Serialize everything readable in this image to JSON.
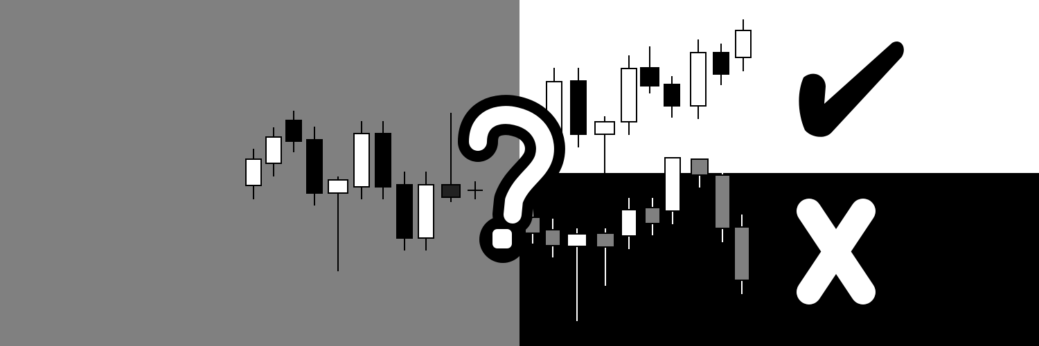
{
  "colors": {
    "left_background": "#808080",
    "right_top_background": "#ffffff",
    "right_bottom_background": "#000000",
    "bullish_candle": "#ffffff",
    "bearish_candle": "#000000",
    "neutral_candle": "#808080",
    "question_mark": "#ffffff",
    "check_mark": "#000000",
    "x_mark": "#ffffff"
  },
  "symbols": {
    "question": "question-mark-icon",
    "correct": "check-mark-icon",
    "wrong": "x-mark-icon"
  },
  "panels": {
    "left": "unknown-outcome",
    "right_top": "correct-prediction",
    "right_bottom": "wrong-prediction"
  }
}
